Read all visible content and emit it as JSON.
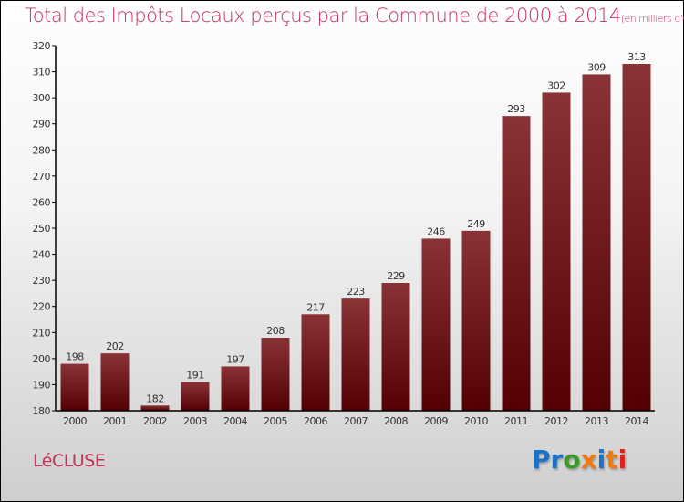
{
  "chart_data": {
    "type": "bar",
    "title": "Total des Impôts Locaux perçus par la Commune de 2000 à 2014",
    "subtitle": "(en milliers d'€)",
    "categories": [
      "2000",
      "2001",
      "2002",
      "2003",
      "2004",
      "2005",
      "2006",
      "2007",
      "2008",
      "2009",
      "2010",
      "2011",
      "2012",
      "2013",
      "2014"
    ],
    "values": [
      198,
      202,
      182,
      191,
      197,
      208,
      217,
      223,
      229,
      246,
      249,
      293,
      302,
      309,
      313
    ],
    "ylim": [
      180,
      320
    ],
    "yticks": [
      180,
      190,
      200,
      210,
      220,
      230,
      240,
      250,
      260,
      270,
      280,
      290,
      300,
      310,
      320
    ],
    "xlabel": "",
    "ylabel": "",
    "bar_color": "#6e1013"
  },
  "commune": "LéCLUSE",
  "logo": {
    "text": "Proxiti",
    "colors": [
      "#1a73c8",
      "#1a73c8",
      "#3a9a2a",
      "#f07a10",
      "#1a73c8",
      "#f07a10",
      "#e02020"
    ]
  }
}
